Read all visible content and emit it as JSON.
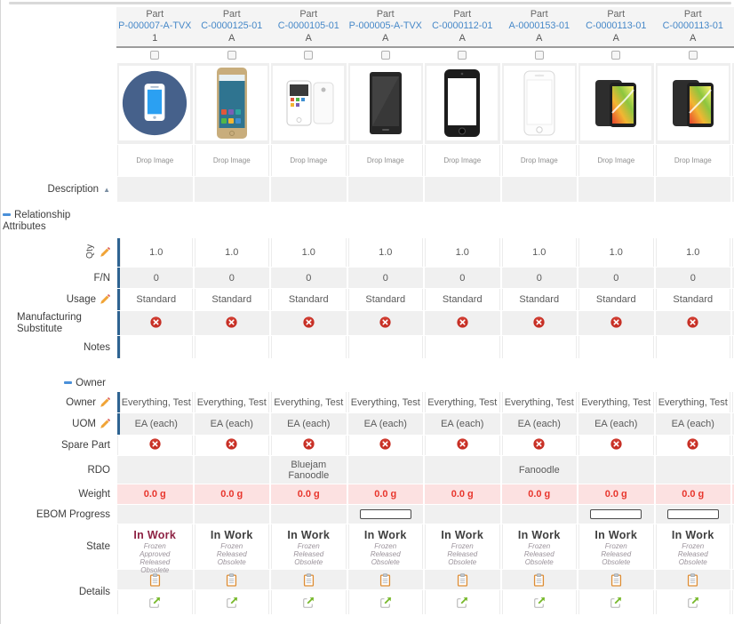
{
  "labels": {
    "drop_image": "Drop Image",
    "description": "Description",
    "sections": {
      "relationship_attributes": "Relationship Attributes",
      "owner": "Owner"
    },
    "rows": {
      "qty": "Qty",
      "fn": "F/N",
      "usage": "Usage",
      "manufacturing_substitute": "Manufacturing Substitute",
      "notes": "Notes",
      "owner": "Owner",
      "uom": "UOM",
      "spare_part": "Spare Part",
      "rdo": "RDO",
      "weight": "Weight",
      "ebom_progress": "EBOM Progress",
      "state": "State",
      "details": "Details"
    }
  },
  "colors": {
    "link": "#4688c8",
    "section_link": "#3b78b8",
    "weight_text": "#e8362d",
    "weight_bg": "#fce1e1",
    "state_current_default": "#3f3f3f",
    "state_current_highlight": "#8e2344",
    "blue_bar": "#2e6391",
    "red_toggle": "#c62f25",
    "pencil_orange": "#f0a437",
    "clipboard_orange": "#dd8c33",
    "open_icon_green": "#76b82a"
  },
  "columns": [
    {
      "type": "Part",
      "number": "P-000007-A-TVX",
      "revision": "1",
      "checkbox_checked": false,
      "image": "blue-circle-phone",
      "description": "",
      "qty": "1.0",
      "fn": "0",
      "usage": "Standard",
      "manufacturing_substitute": "no",
      "notes": "",
      "owner": "Everything, Test",
      "uom": "EA (each)",
      "spare_part": "no",
      "rdo": "",
      "weight": "0.0 g",
      "ebom_progress_bar": false,
      "state": {
        "current": "In Work",
        "highlight": true,
        "pending": [
          "Frozen",
          "Approved",
          "Released",
          "Obsolete"
        ]
      }
    },
    {
      "type": "Part",
      "number": "C-0000125-01",
      "revision": "A",
      "checkbox_checked": false,
      "image": "gold-phone",
      "description": "",
      "qty": "1.0",
      "fn": "0",
      "usage": "Standard",
      "manufacturing_substitute": "no",
      "notes": "",
      "owner": "Everything, Test",
      "uom": "EA (each)",
      "spare_part": "no",
      "rdo": "",
      "weight": "0.0 g",
      "ebom_progress_bar": false,
      "state": {
        "current": "In Work",
        "highlight": false,
        "pending": [
          "Frozen",
          "Released",
          "Obsolete"
        ]
      }
    },
    {
      "type": "Part",
      "number": "C-0000105-01",
      "revision": "A",
      "checkbox_checked": false,
      "image": "white-phone",
      "description": "",
      "qty": "1.0",
      "fn": "0",
      "usage": "Standard",
      "manufacturing_substitute": "no",
      "notes": "",
      "owner": "Everything, Test",
      "uom": "EA (each)",
      "spare_part": "no",
      "rdo": "Bluejam Fanoodle",
      "weight": "0.0 g",
      "ebom_progress_bar": false,
      "state": {
        "current": "In Work",
        "highlight": false,
        "pending": [
          "Frozen",
          "Released",
          "Obsolete"
        ]
      }
    },
    {
      "type": "Part",
      "number": "P-000005-A-TVX",
      "revision": "A",
      "checkbox_checked": false,
      "image": "black-tablet",
      "description": "",
      "qty": "1.0",
      "fn": "0",
      "usage": "Standard",
      "manufacturing_substitute": "no",
      "notes": "",
      "owner": "Everything, Test",
      "uom": "EA (each)",
      "spare_part": "no",
      "rdo": "",
      "weight": "0.0 g",
      "ebom_progress_bar": true,
      "state": {
        "current": "In Work",
        "highlight": false,
        "pending": [
          "Frozen",
          "Released",
          "Obsolete"
        ]
      }
    },
    {
      "type": "Part",
      "number": "C-0000112-01",
      "revision": "A",
      "checkbox_checked": false,
      "image": "black-iphone",
      "description": "",
      "qty": "1.0",
      "fn": "0",
      "usage": "Standard",
      "manufacturing_substitute": "no",
      "notes": "",
      "owner": "Everything, Test",
      "uom": "EA (each)",
      "spare_part": "no",
      "rdo": "",
      "weight": "0.0 g",
      "ebom_progress_bar": false,
      "state": {
        "current": "In Work",
        "highlight": false,
        "pending": [
          "Frozen",
          "Released",
          "Obsolete"
        ]
      }
    },
    {
      "type": "Part",
      "number": "A-0000153-01",
      "revision": "A",
      "checkbox_checked": false,
      "image": "white-iphone",
      "description": "",
      "qty": "1.0",
      "fn": "0",
      "usage": "Standard",
      "manufacturing_substitute": "no",
      "notes": "",
      "owner": "Everything, Test",
      "uom": "EA (each)",
      "spare_part": "no",
      "rdo": "Fanoodle",
      "weight": "0.0 g",
      "ebom_progress_bar": false,
      "state": {
        "current": "In Work",
        "highlight": false,
        "pending": [
          "Frozen",
          "Released",
          "Obsolete"
        ]
      }
    },
    {
      "type": "Part",
      "number": "C-0000113-01",
      "revision": "A",
      "checkbox_checked": false,
      "image": "black-rainbow-phone",
      "description": "",
      "qty": "1.0",
      "fn": "0",
      "usage": "Standard",
      "manufacturing_substitute": "no",
      "notes": "",
      "owner": "Everything, Test",
      "uom": "EA (each)",
      "spare_part": "no",
      "rdo": "",
      "weight": "0.0 g",
      "ebom_progress_bar": true,
      "state": {
        "current": "In Work",
        "highlight": false,
        "pending": [
          "Frozen",
          "Released",
          "Obsolete"
        ]
      }
    },
    {
      "type": "Part",
      "number": "C-0000113-01",
      "revision": "A",
      "checkbox_checked": false,
      "image": "black-rainbow-phone",
      "description": "",
      "qty": "1.0",
      "fn": "0",
      "usage": "Standard",
      "manufacturing_substitute": "no",
      "notes": "",
      "owner": "Everything, Test",
      "uom": "EA (each)",
      "spare_part": "no",
      "rdo": "",
      "weight": "0.0 g",
      "ebom_progress_bar": true,
      "state": {
        "current": "In Work",
        "highlight": false,
        "pending": [
          "Frozen",
          "Released",
          "Obsolete"
        ]
      }
    }
  ]
}
